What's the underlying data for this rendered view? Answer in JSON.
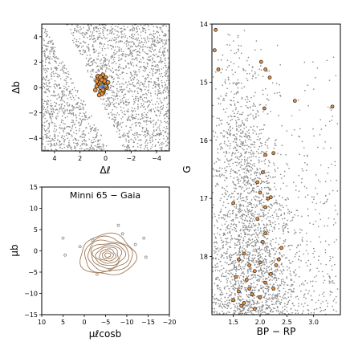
{
  "colors": {
    "field": "#8c8c8c",
    "member_fill": "#e8913a",
    "member_edge": "#1a1a1a",
    "center_cross": "#3a8fd8",
    "contour": "#a07a5a",
    "frame": "#000000"
  },
  "chart_data": [
    {
      "type": "scatter",
      "panel": "spatial",
      "xlabel": "Δℓ",
      "ylabel": "Δb",
      "xlim": [
        5,
        -5
      ],
      "ylim": [
        -5,
        5
      ],
      "xticks": [
        "−4",
        "−2",
        "0",
        "2",
        "4"
      ],
      "xtick_values": [
        -4,
        -2,
        0,
        2,
        4
      ],
      "yticks": [
        "4",
        "2",
        "0",
        "−2",
        "−4"
      ],
      "ytick_values": [
        4,
        2,
        0,
        -2,
        -4
      ],
      "series": [
        {
          "role": "field",
          "marker": "dot",
          "color": "#8c8c8c",
          "note_pattern": "dense uniform field with diagonal empty band",
          "empty_band_edges": [
            [
              [
                3.2,
                5
              ],
              [
                -1.5,
                -5
              ]
            ],
            [
              [
                4.8,
                5
              ],
              [
                -0.3,
                -5
              ]
            ]
          ]
        },
        {
          "role": "members",
          "marker": "circle-edged",
          "color": "#e8913a",
          "x": [
            0.2,
            0.3,
            0.1,
            -0.1,
            0.4,
            0.5,
            0.2,
            0.6,
            0.0,
            0.3,
            -0.2,
            0.7,
            0.4,
            0.1,
            0.5,
            0.3,
            0.6,
            0.2,
            -0.1,
            0.4,
            0.8,
            0.3,
            0.5,
            0.1,
            0.2,
            0.6,
            0.4,
            0.0,
            0.3,
            0.7
          ],
          "y": [
            0.2,
            0.5,
            -0.1,
            0.3,
            0.0,
            0.6,
            -0.4,
            0.2,
            0.8,
            0.9,
            0.4,
            0.1,
            -0.3,
            0.6,
            0.3,
            -0.5,
            0.7,
            1.0,
            0.0,
            0.4,
            -0.2,
            0.2,
            -0.6,
            0.5,
            -0.2,
            0.9,
            0.8,
            0.1,
            0.6,
            0.5
          ]
        },
        {
          "role": "cluster-center",
          "marker": "cross",
          "color": "#3a8fd8",
          "x": [
            0.3
          ],
          "y": [
            0.1
          ]
        }
      ]
    },
    {
      "type": "scatter",
      "panel": "proper-motion",
      "title": "Minni 65  −  Gaia",
      "xlabel": "μℓcosb",
      "ylabel": "μb",
      "xlim": [
        10,
        -20
      ],
      "ylim": [
        -15,
        15
      ],
      "xticks": [
        "10",
        "5",
        "0",
        "−5",
        "−10",
        "−15",
        "−20"
      ],
      "xtick_values": [
        10,
        5,
        0,
        -5,
        -10,
        -15,
        -20
      ],
      "yticks": [
        "15",
        "10",
        "5",
        "0",
        "−5",
        "−10",
        "−15"
      ],
      "ytick_values": [
        15,
        10,
        5,
        0,
        -5,
        -10,
        -15
      ],
      "series": [
        {
          "role": "density-contours",
          "marker": "contour",
          "color": "#a07a5a",
          "center": [
            -5.5,
            -1.0
          ],
          "levels_semi_axes": [
            [
              6.5,
              4.8
            ],
            [
              5.6,
              4.1
            ],
            [
              4.8,
              3.5
            ],
            [
              4.0,
              2.9
            ],
            [
              3.3,
              2.4
            ],
            [
              2.6,
              1.9
            ],
            [
              1.9,
              1.4
            ],
            [
              1.3,
              0.9
            ],
            [
              0.7,
              0.5
            ]
          ]
        },
        {
          "role": "outliers",
          "marker": "open-circle",
          "color": "#8c8c8c",
          "x": [
            5.0,
            4.5,
            -2.0,
            -8.0,
            -14.0,
            -14.5,
            -9.0,
            -3.0,
            1.0,
            -6.0,
            -12.0
          ],
          "y": [
            3.0,
            -1.0,
            2.5,
            6.0,
            3.0,
            -1.5,
            4.0,
            -5.5,
            1.0,
            -4.5,
            1.5
          ]
        }
      ]
    },
    {
      "type": "scatter",
      "panel": "cmd",
      "xlabel": "BP − RP",
      "ylabel": "G",
      "xlim": [
        1.1,
        3.5
      ],
      "ylim": [
        19,
        14
      ],
      "y_inverted": true,
      "xticks": [
        "1.5",
        "2.0",
        "2.5",
        "3.0"
      ],
      "xtick_values": [
        1.5,
        2.0,
        2.5,
        3.0
      ],
      "yticks": [
        "14",
        "15",
        "16",
        "17",
        "18"
      ],
      "ytick_values": [
        14,
        15,
        16,
        17,
        18
      ],
      "series": [
        {
          "role": "field",
          "marker": "dot",
          "color": "#8c8c8c"
        },
        {
          "role": "members",
          "marker": "circle-edged",
          "color": "#e8913a",
          "x": [
            1.17,
            1.15,
            1.22,
            2.02,
            2.1,
            2.18,
            2.08,
            2.65,
            3.35,
            2.1,
            2.0,
            1.5,
            2.25,
            2.05,
            1.95,
            2.15,
            2.2,
            2.1,
            1.6,
            1.7,
            1.8,
            2.0,
            1.9,
            2.2,
            2.3,
            2.1,
            1.75,
            1.6,
            2.25,
            2.0,
            1.85,
            1.5,
            2.4,
            1.65,
            1.9,
            2.35,
            1.55,
            1.7,
            2.1,
            1.8,
            1.95,
            2.05
          ],
          "y": [
            14.1,
            14.45,
            14.78,
            14.65,
            14.78,
            14.92,
            15.45,
            15.32,
            15.42,
            16.25,
            16.9,
            17.08,
            16.22,
            16.55,
            16.72,
            17.0,
            16.98,
            17.15,
            18.05,
            17.95,
            18.15,
            18.1,
            18.25,
            18.3,
            18.15,
            18.45,
            18.4,
            18.6,
            18.55,
            18.7,
            18.65,
            18.75,
            17.85,
            18.85,
            18.9,
            18.05,
            18.35,
            18.8,
            17.6,
            18.55,
            17.35,
            17.75
          ]
        }
      ]
    }
  ]
}
